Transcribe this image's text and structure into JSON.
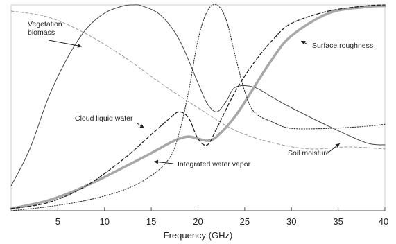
{
  "chart_data": {
    "type": "line",
    "title": "",
    "xlabel": "Frequency (GHz)",
    "ylabel": "",
    "xlim": [
      0,
      40
    ],
    "ylim": [
      0,
      1
    ],
    "x_ticks": [
      "5",
      "10",
      "15",
      "20",
      "25",
      "30",
      "35",
      "40"
    ],
    "x_tick_values": [
      5,
      10,
      15,
      20,
      25,
      30,
      35,
      40
    ],
    "grid": false,
    "legend": "none",
    "series": [
      {
        "name": "Vegetation biomass",
        "style": "thin-solid",
        "color": "#444444",
        "x": [
          0,
          2,
          4,
          6,
          8,
          10,
          12,
          13,
          14,
          16,
          18,
          20,
          21,
          22,
          23,
          24,
          26,
          28,
          30,
          34,
          38,
          40
        ],
        "y": [
          0.12,
          0.3,
          0.55,
          0.74,
          0.88,
          0.96,
          0.995,
          1.0,
          0.995,
          0.95,
          0.83,
          0.62,
          0.52,
          0.48,
          0.53,
          0.6,
          0.6,
          0.55,
          0.5,
          0.41,
          0.33,
          0.32
        ]
      },
      {
        "name": "Cloud liquid water",
        "style": "dashed",
        "color": "#222222",
        "x": [
          0,
          4,
          8,
          12,
          15,
          17,
          18,
          19,
          20,
          21,
          22,
          24,
          26,
          28,
          30,
          34,
          38,
          40
        ],
        "y": [
          0.01,
          0.04,
          0.12,
          0.25,
          0.37,
          0.45,
          0.48,
          0.45,
          0.35,
          0.32,
          0.4,
          0.58,
          0.72,
          0.83,
          0.91,
          0.97,
          0.995,
          1.0
        ]
      },
      {
        "name": "Surface roughness",
        "style": "thick-solid",
        "color": "#a8a8a8",
        "x": [
          0,
          4,
          8,
          12,
          15,
          17,
          18,
          19,
          20,
          21,
          22,
          24,
          26,
          28,
          30,
          34,
          38,
          40
        ],
        "y": [
          0.01,
          0.05,
          0.12,
          0.21,
          0.28,
          0.33,
          0.35,
          0.36,
          0.35,
          0.34,
          0.36,
          0.46,
          0.6,
          0.74,
          0.85,
          0.96,
          0.99,
          0.995
        ]
      },
      {
        "name": "Integrated water vapor",
        "style": "dotted",
        "color": "#333333",
        "x": [
          0,
          4,
          8,
          12,
          15,
          17,
          18,
          19,
          20,
          21,
          22,
          23,
          24,
          25,
          26,
          28,
          30,
          34,
          38,
          40
        ],
        "y": [
          0.0,
          0.02,
          0.05,
          0.1,
          0.17,
          0.26,
          0.38,
          0.58,
          0.83,
          0.97,
          1.0,
          0.93,
          0.75,
          0.58,
          0.48,
          0.43,
          0.4,
          0.4,
          0.41,
          0.42
        ]
      },
      {
        "name": "Soil moisture",
        "style": "fine-dashed",
        "color": "#9a9a9a",
        "x": [
          0,
          4,
          8,
          12,
          16,
          20,
          24,
          28,
          32,
          36,
          40
        ],
        "y": [
          0.97,
          0.94,
          0.86,
          0.75,
          0.62,
          0.5,
          0.39,
          0.33,
          0.3,
          0.31,
          0.3
        ]
      }
    ],
    "annotations": [
      {
        "text": "Vegetation biomass",
        "series": "Vegetation biomass"
      },
      {
        "text": "Cloud liquid water",
        "series": "Cloud liquid water"
      },
      {
        "text": "Surface roughness",
        "series": "Surface roughness"
      },
      {
        "text": "Integrated water vapor",
        "series": "Integrated water vapor"
      },
      {
        "text": "Soil moisture",
        "series": "Soil moisture"
      }
    ]
  }
}
